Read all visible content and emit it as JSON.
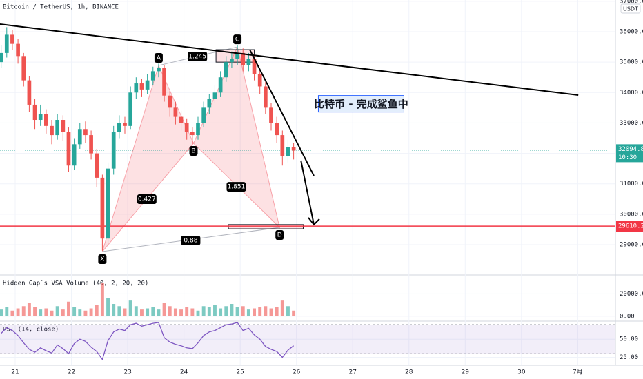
{
  "chart_data": [
    {
      "type": "candlestick",
      "title": "Bitcoin / TetherUS, 1h, BINANCE",
      "unit": "USDT",
      "xlim": [
        20.73,
        31.67
      ],
      "xticks": [
        21,
        22,
        23,
        24,
        25,
        26,
        27,
        28,
        29,
        30,
        {
          "value": 31,
          "label": "7月"
        }
      ],
      "ylim": [
        28026,
        37042
      ],
      "yticks": [
        {
          "value": 29000,
          "label": "29000.00"
        },
        {
          "value": 30000,
          "label": "30000.00"
        },
        {
          "value": 31000,
          "label": "31000.00"
        },
        {
          "value": 32000,
          "label": "32000.00"
        },
        {
          "value": 33000,
          "label": "33000.00"
        },
        {
          "value": 34000,
          "label": "34000.00"
        },
        {
          "value": 35000,
          "label": "35000.00"
        },
        {
          "value": 36000,
          "label": "36000.00"
        },
        {
          "value": 37000,
          "label": "37000.00"
        }
      ],
      "up_color": "#26a69a",
      "down_color": "#ef5350",
      "x": [
        20.75,
        20.85,
        20.95,
        21.05,
        21.15,
        21.25,
        21.35,
        21.45,
        21.55,
        21.65,
        21.75,
        21.85,
        21.95,
        22.05,
        22.15,
        22.25,
        22.35,
        22.45,
        22.55,
        22.65,
        22.75,
        22.85,
        22.95,
        23.05,
        23.15,
        23.25,
        23.35,
        23.45,
        23.55,
        23.65,
        23.75,
        23.85,
        23.95,
        24.05,
        24.15,
        24.25,
        24.35,
        24.45,
        24.55,
        24.65,
        24.75,
        24.85,
        24.95,
        25.05,
        25.15,
        25.25,
        25.35,
        25.45,
        25.55,
        25.65,
        25.75,
        25.85,
        25.95
      ],
      "open": [
        35000,
        35300,
        35900,
        35600,
        35200,
        34400,
        33600,
        33100,
        33300,
        32900,
        32600,
        33100,
        32700,
        31600,
        32300,
        32800,
        32600,
        32000,
        31200,
        29200,
        31500,
        32700,
        33000,
        32900,
        34000,
        34300,
        34100,
        34400,
        34700,
        34800,
        33900,
        33500,
        33200,
        33000,
        32700,
        32600,
        33000,
        33500,
        33800,
        34000,
        34500,
        35000,
        35100,
        35300,
        34900,
        35100,
        34600,
        34200,
        33500,
        33000,
        32600,
        31900,
        32200
      ],
      "high": [
        35550,
        36150,
        36050,
        35750,
        35300,
        34550,
        33800,
        33600,
        33450,
        33100,
        33300,
        33250,
        32850,
        32500,
        33000,
        33050,
        32750,
        32150,
        31300,
        31700,
        32900,
        33250,
        33200,
        34200,
        34500,
        34450,
        34600,
        34850,
        34950,
        34900,
        34050,
        33700,
        33400,
        33150,
        32850,
        33200,
        33700,
        33950,
        34250,
        34700,
        35200,
        35350,
        35550,
        35450,
        35300,
        35250,
        34750,
        34350,
        33650,
        33200,
        32750,
        32450,
        32350
      ],
      "low": [
        34800,
        35150,
        35400,
        34950,
        34200,
        33350,
        32800,
        32900,
        32650,
        32300,
        32450,
        32400,
        31400,
        31450,
        32150,
        32350,
        31800,
        30900,
        28800,
        29050,
        31300,
        32500,
        32650,
        32800,
        33800,
        33850,
        33950,
        34250,
        34500,
        33700,
        33200,
        32950,
        32750,
        32450,
        32300,
        32450,
        32850,
        33300,
        33650,
        33850,
        34350,
        34800,
        34900,
        34700,
        34700,
        34400,
        33950,
        33300,
        32750,
        32350,
        31600,
        31700,
        31800
      ],
      "close": [
        35300,
        35900,
        35600,
        35200,
        34400,
        33600,
        33100,
        33300,
        32900,
        32600,
        33100,
        32700,
        31600,
        32300,
        32800,
        32600,
        32000,
        31200,
        29200,
        31500,
        32700,
        33000,
        32900,
        34000,
        34300,
        34100,
        34400,
        34700,
        34800,
        33900,
        33500,
        33200,
        33000,
        32700,
        32600,
        33000,
        33500,
        33800,
        34000,
        34500,
        35000,
        35100,
        35300,
        34900,
        35100,
        34600,
        34200,
        33500,
        33000,
        32600,
        31900,
        32200,
        32094.86
      ],
      "price_line": {
        "value": 32094.86,
        "time": "10:30",
        "color": "#26a69a"
      },
      "hline": {
        "value": 29610.27,
        "color": "#f23645"
      },
      "trendline": {
        "x": [
          20.73,
          31.01
        ],
        "y": [
          36250,
          33915
        ]
      },
      "arrow_lines": [
        {
          "x": [
            25.17,
            26.31
          ],
          "y": [
            35410,
            31264
          ]
        },
        {
          "x": [
            26.08,
            26.31
          ],
          "y": [
            31764,
            29660
          ]
        }
      ],
      "boxes": [
        {
          "x": [
            24.57,
            25.25
          ],
          "y": [
            35000,
            35410
          ]
        },
        {
          "x": [
            24.79,
            26.12
          ],
          "y": [
            29520,
            29660
          ]
        }
      ],
      "pattern_points": [
        {
          "label": "X",
          "x": 22.55,
          "y": 28773
        },
        {
          "label": "A",
          "x": 23.55,
          "y": 34890
        },
        {
          "label": "B",
          "x": 24.17,
          "y": 32330
        },
        {
          "label": "C",
          "x": 24.95,
          "y": 35500
        },
        {
          "label": "D",
          "x": 25.7,
          "y": 29566
        }
      ],
      "ratios": [
        {
          "label": "1.245",
          "x": 24.24,
          "y": 35184
        },
        {
          "label": "0.427",
          "x": 23.34,
          "y": 30495
        },
        {
          "label": "1.851",
          "x": 24.93,
          "y": 30900
        },
        {
          "label": "0.88",
          "x": 24.12,
          "y": 29136
        }
      ],
      "note": {
        "label": "比特币 - 完成鲨鱼中",
        "x": 27.15,
        "y": 33630
      }
    },
    {
      "type": "bar",
      "title": "Hidden Gap`s VSA Volume (40, 2, 20, 20)",
      "ylim": [
        -3750,
        35600
      ],
      "yticks": [
        {
          "value": 0,
          "label": "0.00"
        },
        {
          "value": 20000,
          "label": "20000.00"
        }
      ],
      "values": [
        6000,
        8000,
        5000,
        7000,
        9000,
        12000,
        8000,
        6000,
        7000,
        5000,
        9000,
        6000,
        13000,
        8000,
        6000,
        5000,
        7000,
        10000,
        30000,
        16000,
        11000,
        9000,
        7000,
        14000,
        9000,
        6000,
        7000,
        8000,
        6000,
        12000,
        9000,
        7000,
        6000,
        8000,
        7000,
        5000,
        9000,
        8000,
        10000,
        7000,
        9000,
        11000,
        8000,
        9000,
        6000,
        7000,
        8000,
        9000,
        7000,
        8000,
        14000,
        9000,
        5000
      ]
    },
    {
      "type": "line",
      "title": "RSI (14, close)",
      "color": "#7e57c2",
      "ylim": [
        15,
        73
      ],
      "band": [
        30,
        70
      ],
      "yticks": [
        {
          "value": 25,
          "label": "25.00"
        },
        {
          "value": 50,
          "label": "50.00"
        }
      ],
      "values": [
        58,
        66,
        62,
        55,
        45,
        36,
        32,
        38,
        34,
        31,
        42,
        37,
        30,
        44,
        50,
        47,
        39,
        33,
        22,
        48,
        60,
        64,
        62,
        70,
        72,
        68,
        70,
        72,
        73,
        52,
        46,
        43,
        41,
        38,
        37,
        45,
        55,
        60,
        62,
        66,
        70,
        71,
        73,
        62,
        65,
        56,
        50,
        40,
        36,
        33,
        25,
        35,
        41
      ]
    }
  ]
}
